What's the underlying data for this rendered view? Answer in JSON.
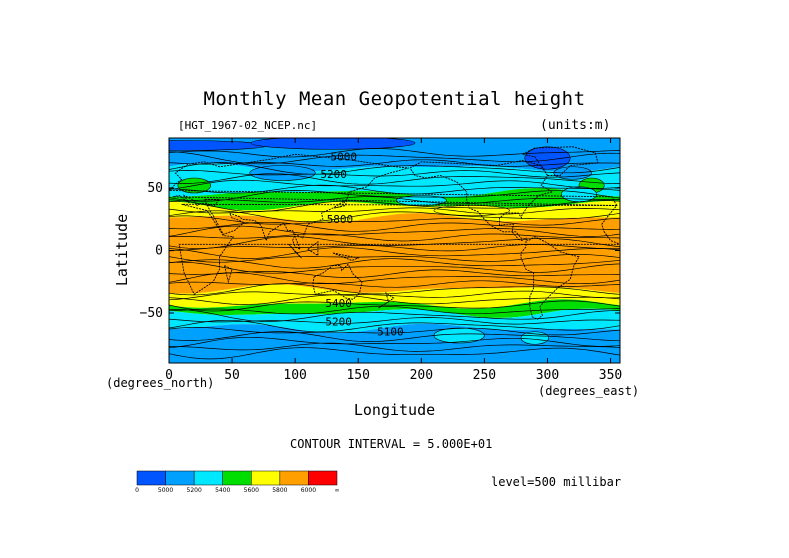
{
  "title": "Monthly Mean Geopotential height",
  "file_label": "[HGT_1967-02_NCEP.nc]",
  "units_label": "(units:m)",
  "xlabel": "Longitude",
  "ylabel": "Latitude",
  "x_units_left": "(degrees_north)",
  "x_units_right": "(degrees_east)",
  "contour_interval": "CONTOUR INTERVAL = 5.000E+01",
  "level": "level=500 millibar",
  "chart_data": {
    "type": "heatmap",
    "title": "Monthly Mean Geopotential height",
    "xlabel": "Longitude",
    "ylabel": "Latitude",
    "xlim": [
      0,
      357.5
    ],
    "ylim": [
      -90,
      90
    ],
    "x_ticks": [
      0,
      50,
      100,
      150,
      200,
      250,
      300,
      350
    ],
    "y_ticks": [
      50,
      0,
      -50
    ],
    "colorbar": {
      "bounds": [
        "0",
        "5000",
        "5200",
        "5400",
        "5600",
        "5800",
        "6000",
        "∞"
      ],
      "colors": [
        "#0055ff",
        "#00a0ff",
        "#00e8ff",
        "#00dd00",
        "#ffff00",
        "#ffa000",
        "#ff0000"
      ]
    },
    "contour_labels": [
      {
        "text": "5000",
        "lon": 128,
        "lat": 72
      },
      {
        "text": "5200",
        "lon": 120,
        "lat": 58
      },
      {
        "text": "5800",
        "lon": 125,
        "lat": 22
      },
      {
        "text": "5400",
        "lon": 124,
        "lat": -45
      },
      {
        "text": "5200",
        "lon": 124,
        "lat": -60
      },
      {
        "text": "5100",
        "lon": 165,
        "lat": -68
      }
    ],
    "bands": [
      {
        "lat_top": 90,
        "lat_bot": 66,
        "color": "#00a0ff"
      },
      {
        "lat_top": 66,
        "lat_bot": 46,
        "color": "#00e8ff"
      },
      {
        "lat_top": 46,
        "lat_bot": 36,
        "color": "#00dd00"
      },
      {
        "lat_top": 36,
        "lat_bot": 26,
        "color": "#ffff00"
      },
      {
        "lat_top": 26,
        "lat_bot": -31,
        "color": "#ffa000"
      },
      {
        "lat_top": -31,
        "lat_bot": -43,
        "color": "#ffff00"
      },
      {
        "lat_top": -43,
        "lat_bot": -50,
        "color": "#00dd00"
      },
      {
        "lat_top": -50,
        "lat_bot": -62,
        "color": "#00e8ff"
      },
      {
        "lat_top": -62,
        "lat_bot": -90,
        "color": "#00a0ff"
      }
    ],
    "low_zones": [
      {
        "lon": 8,
        "lat": 84,
        "w": 140,
        "h": 8,
        "color": "#0055ff"
      },
      {
        "lon": 130,
        "lat": 86,
        "w": 130,
        "h": 10,
        "color": "#0055ff"
      },
      {
        "lon": 300,
        "lat": 74,
        "w": 36,
        "h": 18,
        "color": "#0055ff"
      },
      {
        "lon": 90,
        "lat": 62,
        "w": 52,
        "h": 12,
        "color": "#00a0ff"
      },
      {
        "lon": 320,
        "lat": 62,
        "w": 30,
        "h": 10,
        "color": "#00a0ff"
      },
      {
        "lon": 20,
        "lat": 52,
        "w": 26,
        "h": 12,
        "color": "#00dd00"
      },
      {
        "lon": 335,
        "lat": 52,
        "w": 20,
        "h": 12,
        "color": "#00dd00"
      },
      {
        "lon": 200,
        "lat": 40,
        "w": 40,
        "h": 8,
        "color": "#00e8ff"
      },
      {
        "lon": 325,
        "lat": 45,
        "w": 28,
        "h": 12,
        "color": "#00e8ff"
      },
      {
        "lon": 240,
        "lat": 32,
        "w": 60,
        "h": 8,
        "color": "#ffff00"
      },
      {
        "lon": 230,
        "lat": -68,
        "w": 40,
        "h": 12,
        "color": "#00e8ff"
      },
      {
        "lon": 290,
        "lat": -70,
        "w": 22,
        "h": 10,
        "color": "#00e8ff"
      }
    ]
  }
}
